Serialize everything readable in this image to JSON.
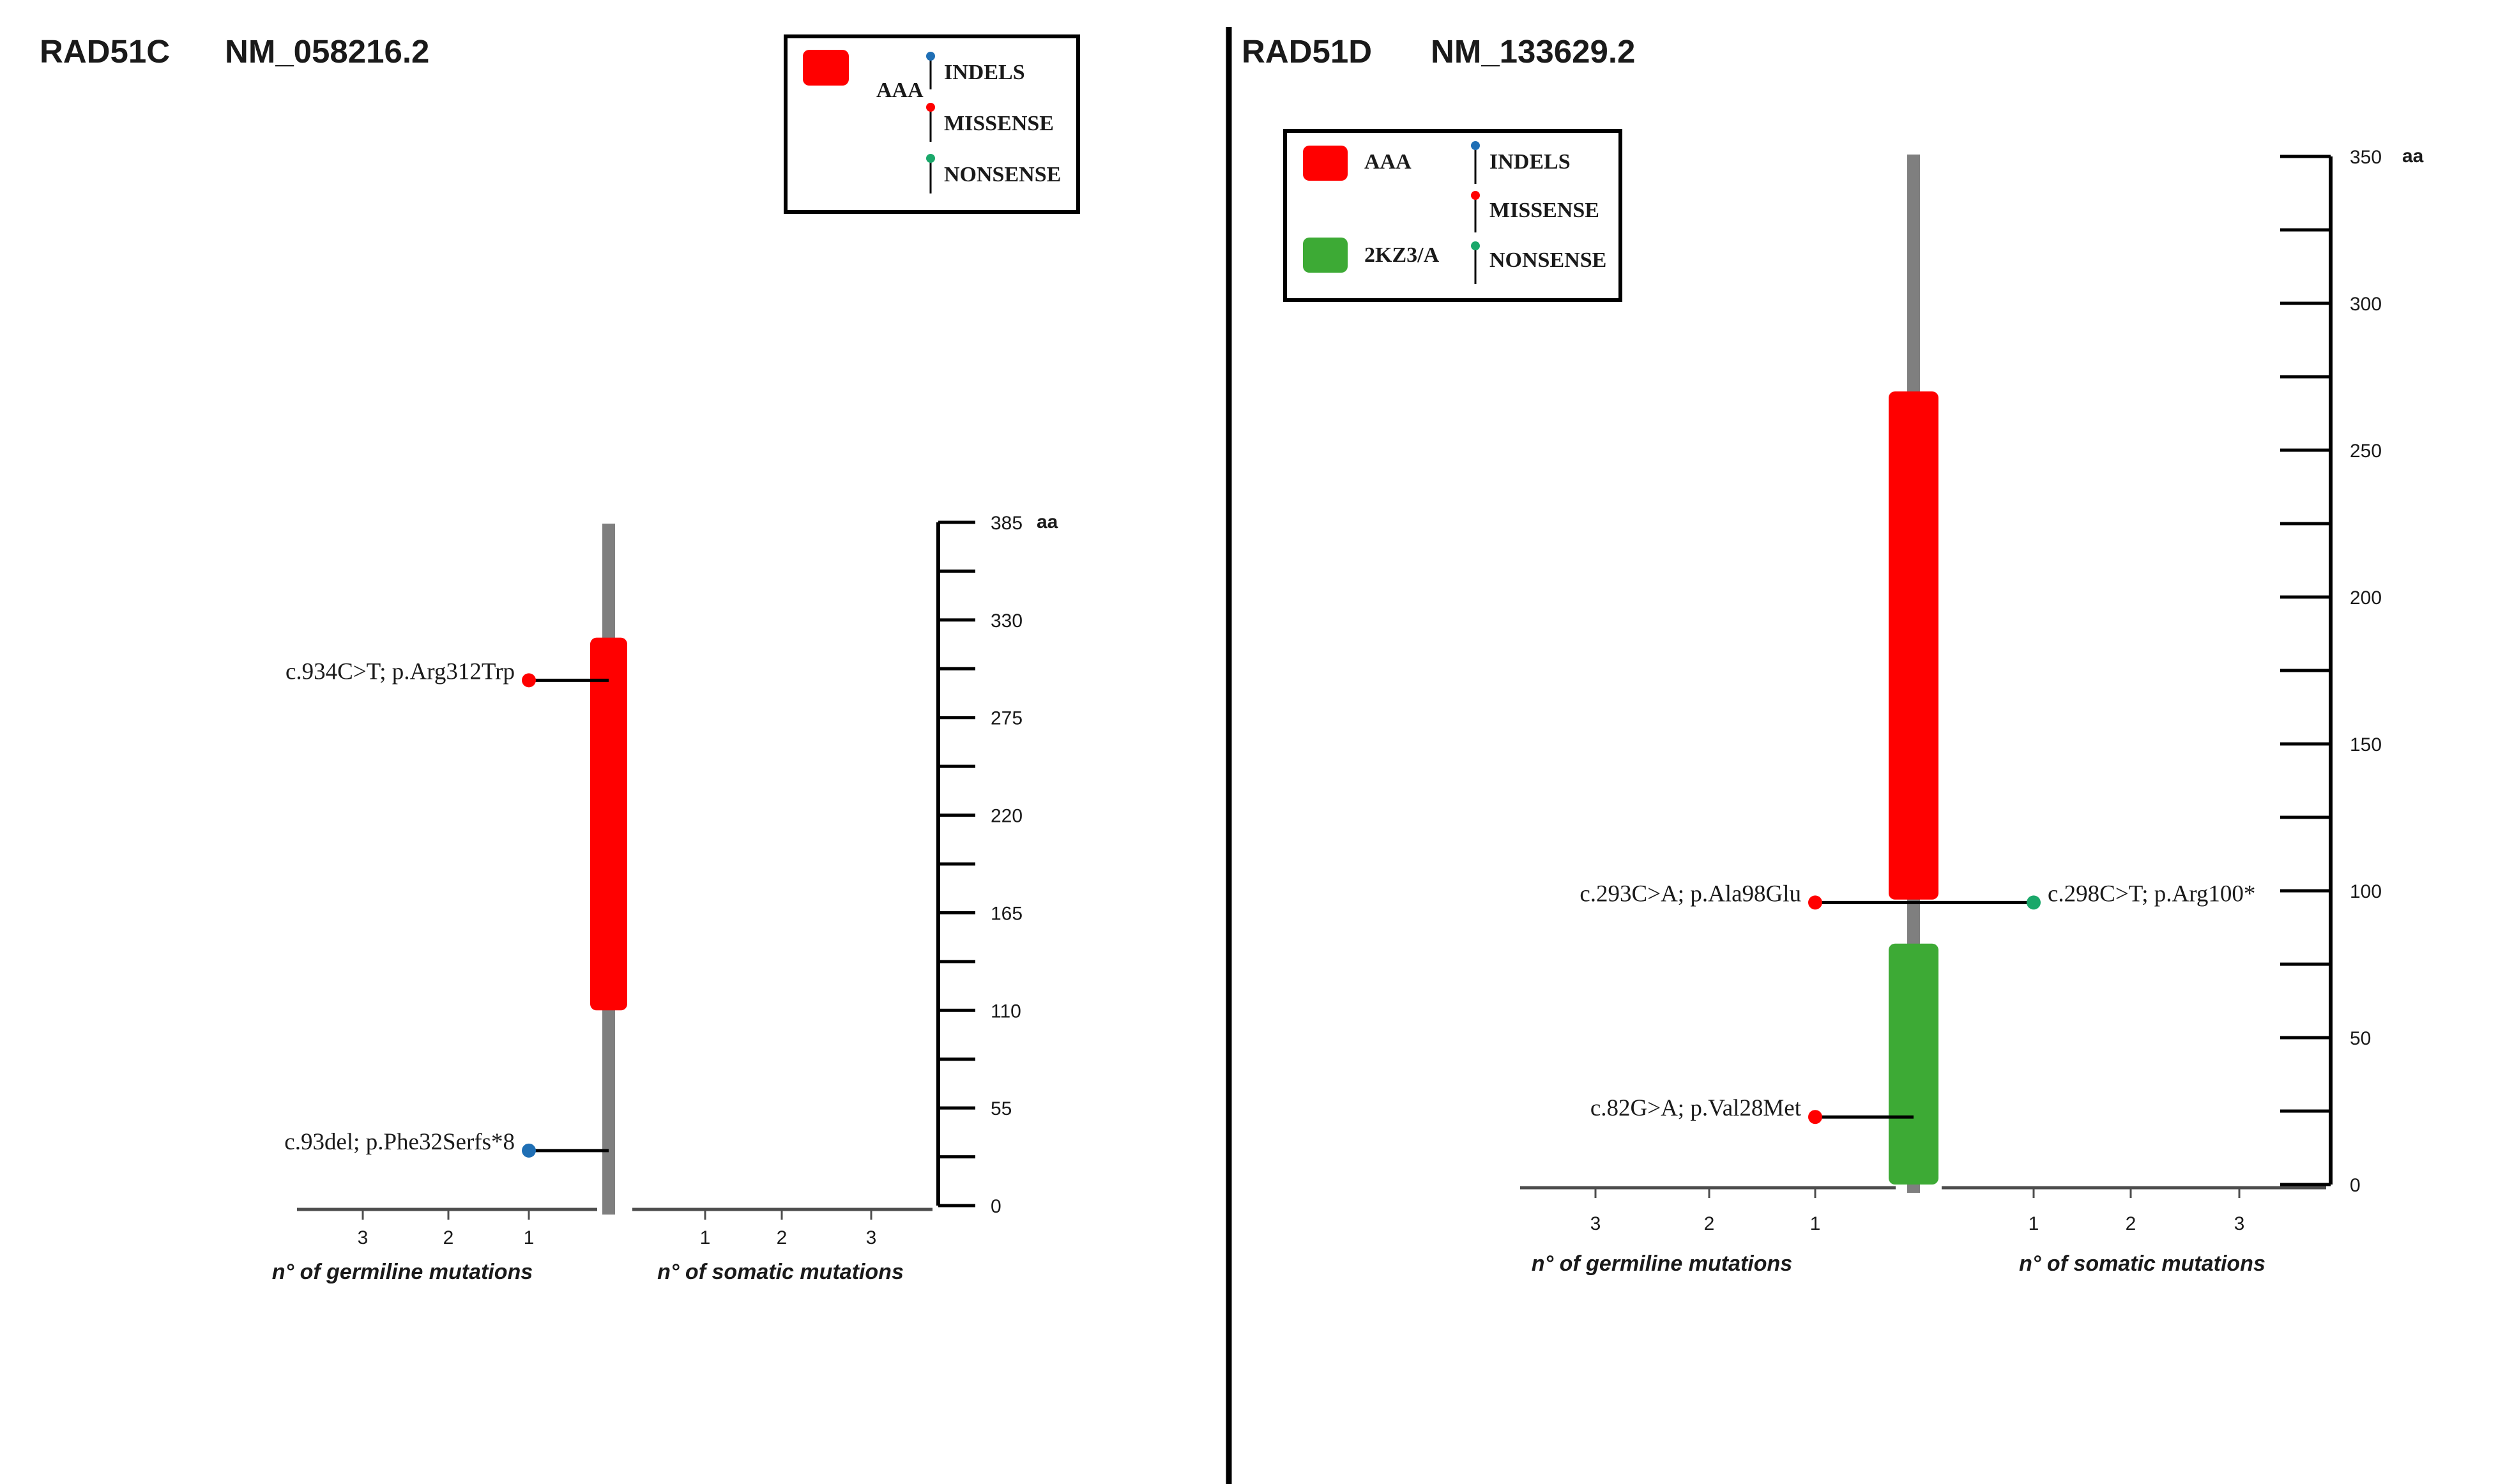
{
  "colors": {
    "AAA": "#ff0000",
    "2KZ3/A": "#3daa35",
    "INDELS": "#1f6fb5",
    "MISSENSE": "#ff0000",
    "NONSENSE": "#1aa86a",
    "backbone": "#7f7f7f",
    "divider": "#000000"
  },
  "legend_mutation_types": [
    "INDELS",
    "MISSENSE",
    "NONSENSE"
  ],
  "chart_data": [
    {
      "type": "lollipop",
      "gene": "RAD51C",
      "transcript": "NM_058216.2",
      "protein_length": 385,
      "axis_unit": "aa",
      "y_ticks": [
        0,
        55,
        110,
        165,
        220,
        275,
        330,
        385
      ],
      "y_range": [
        0,
        385
      ],
      "domains": [
        {
          "name": "AAA",
          "start": 110,
          "end": 320
        }
      ],
      "legend_domains": [
        "AAA"
      ],
      "germline_ticks": [
        3,
        2,
        1
      ],
      "somatic_ticks": [
        1,
        2,
        3
      ],
      "xlabel_germline": "n° of germiline mutations",
      "xlabel_somatic": "n° of somatic mutations",
      "mutations": [
        {
          "label": "c.934C>T;  p.Arg312Trp",
          "position": 296,
          "origin": "germline",
          "count": 1,
          "type": "MISSENSE"
        },
        {
          "label": "c.93del;  p.Phe32Serfs*8",
          "position": 31,
          "origin": "germline",
          "count": 1,
          "type": "INDELS"
        }
      ]
    },
    {
      "type": "lollipop",
      "gene": "RAD51D",
      "transcript": "NM_133629.2",
      "protein_length": 350,
      "axis_unit": "aa",
      "y_ticks": [
        0,
        50,
        100,
        150,
        200,
        250,
        300,
        350
      ],
      "y_range": [
        0,
        350
      ],
      "domains": [
        {
          "name": "AAA",
          "start": 97,
          "end": 270
        },
        {
          "name": "2KZ3/A",
          "start": 0,
          "end": 82
        }
      ],
      "legend_domains": [
        "AAA",
        "2KZ3/A"
      ],
      "germline_ticks": [
        3,
        2,
        1
      ],
      "somatic_ticks": [
        1,
        2,
        3
      ],
      "xlabel_germline": "n° of germiline mutations",
      "xlabel_somatic": "n° of somatic mutations",
      "mutations": [
        {
          "label": "c.293C>A;  p.Ala98Glu",
          "position": 96,
          "origin": "germline",
          "count": 1,
          "type": "MISSENSE"
        },
        {
          "label": "c.298C>T;  p.Arg100*",
          "position": 96,
          "origin": "somatic",
          "count": 1,
          "type": "NONSENSE"
        },
        {
          "label": "c.82G>A;  p.Val28Met",
          "position": 23,
          "origin": "germline",
          "count": 1,
          "type": "MISSENSE"
        }
      ]
    }
  ]
}
